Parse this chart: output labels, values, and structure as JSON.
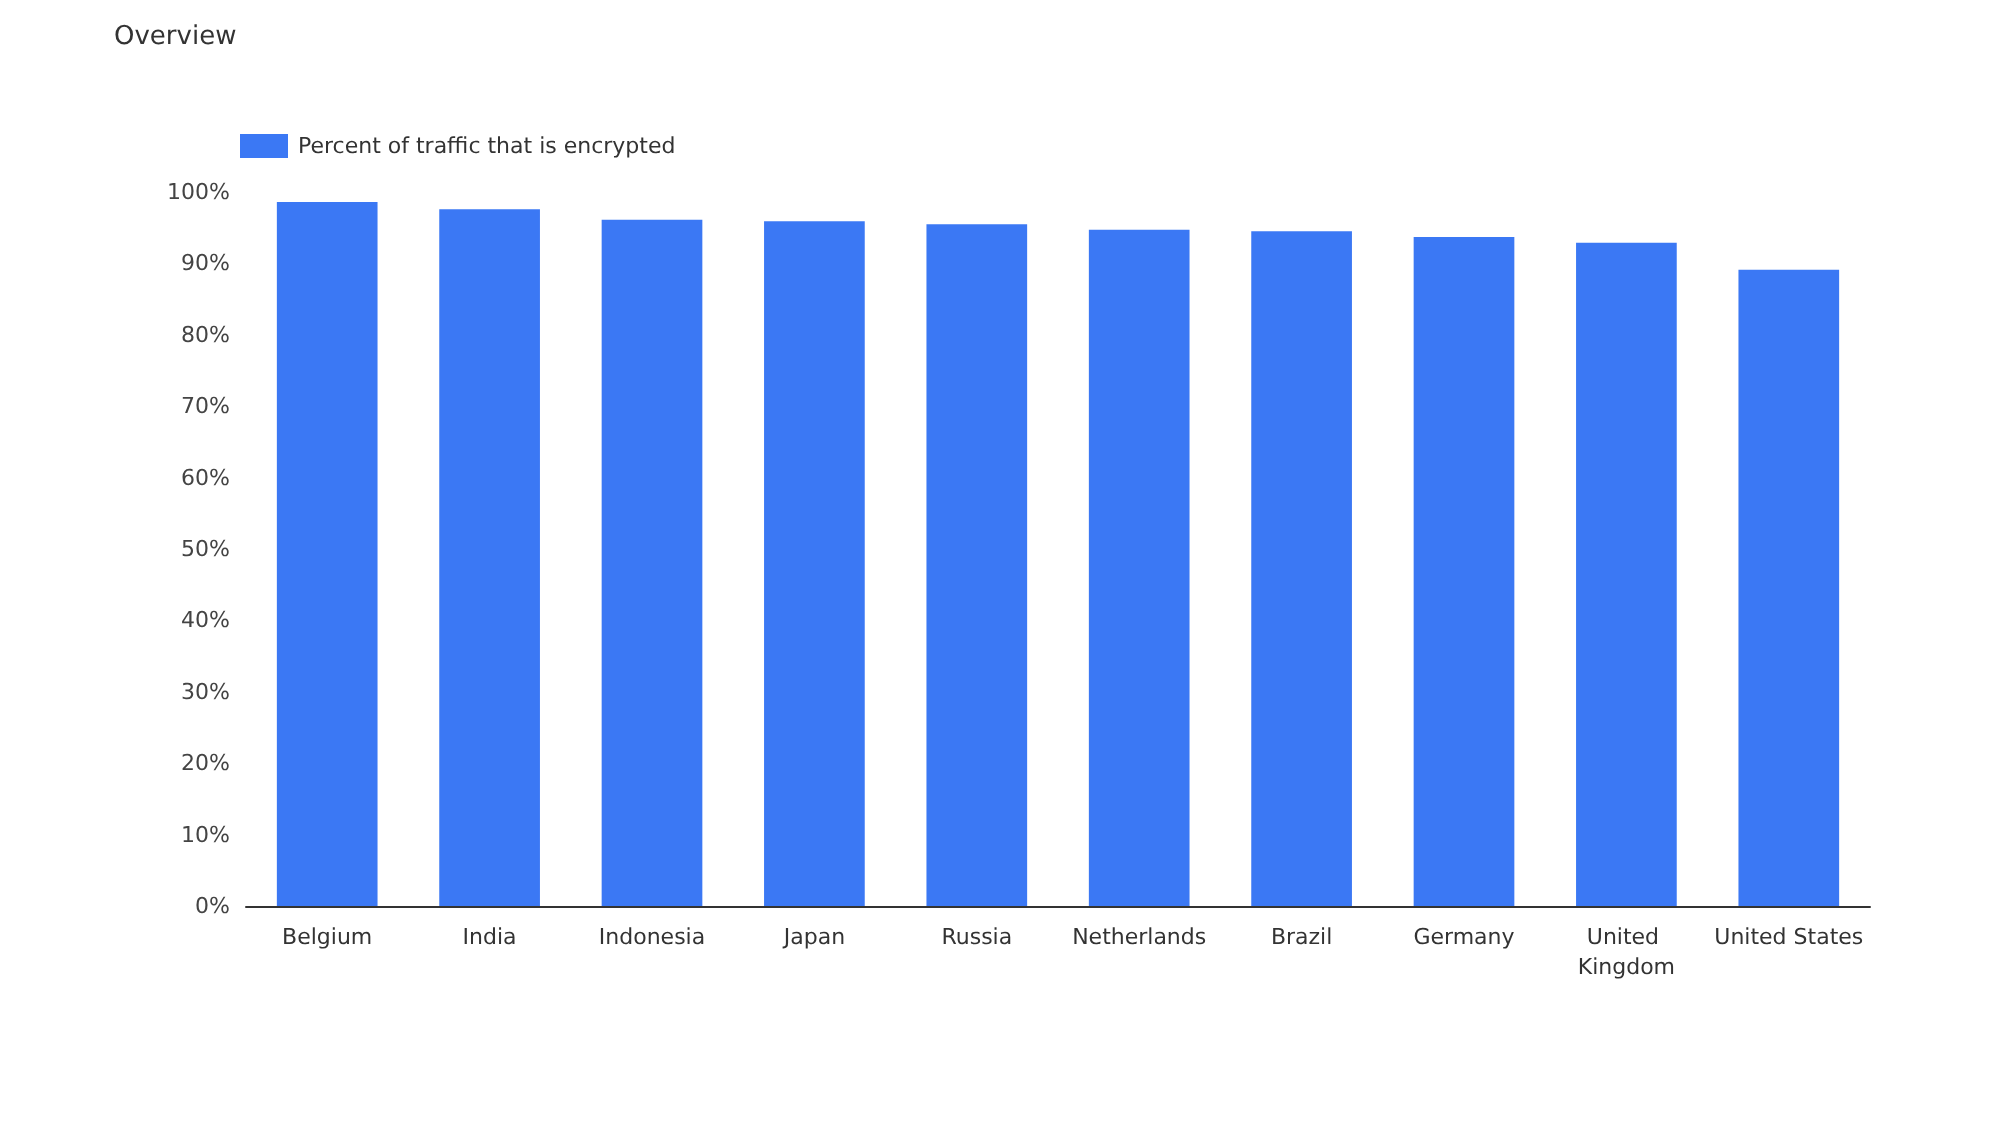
{
  "chart_data": {
    "type": "bar",
    "title": "Overview",
    "categories": [
      "Belgium",
      "India",
      "Indonesia",
      "Japan",
      "Russia",
      "Netherlands",
      "Brazil",
      "Germany",
      "United Kingdom",
      "United States"
    ],
    "series": [
      {
        "name": "Percent of traffic that is encrypted",
        "color": "#3b78f4",
        "values": [
          98.6,
          97.6,
          96.1,
          95.9,
          95.5,
          94.7,
          94.5,
          93.7,
          92.9,
          89.1
        ]
      }
    ],
    "ylim": [
      0,
      100
    ],
    "yticks": [
      {
        "value": 0,
        "label": "0%"
      },
      {
        "value": 10,
        "label": "10%"
      },
      {
        "value": 20,
        "label": "20%"
      },
      {
        "value": 30,
        "label": "30%"
      },
      {
        "value": 40,
        "label": "40%"
      },
      {
        "value": 50,
        "label": "50%"
      },
      {
        "value": 60,
        "label": "60%"
      },
      {
        "value": 70,
        "label": "70%"
      },
      {
        "value": 80,
        "label": "80%"
      },
      {
        "value": 90,
        "label": "90%"
      },
      {
        "value": 100,
        "label": "100%"
      }
    ],
    "grid": false,
    "legend": "top left"
  }
}
